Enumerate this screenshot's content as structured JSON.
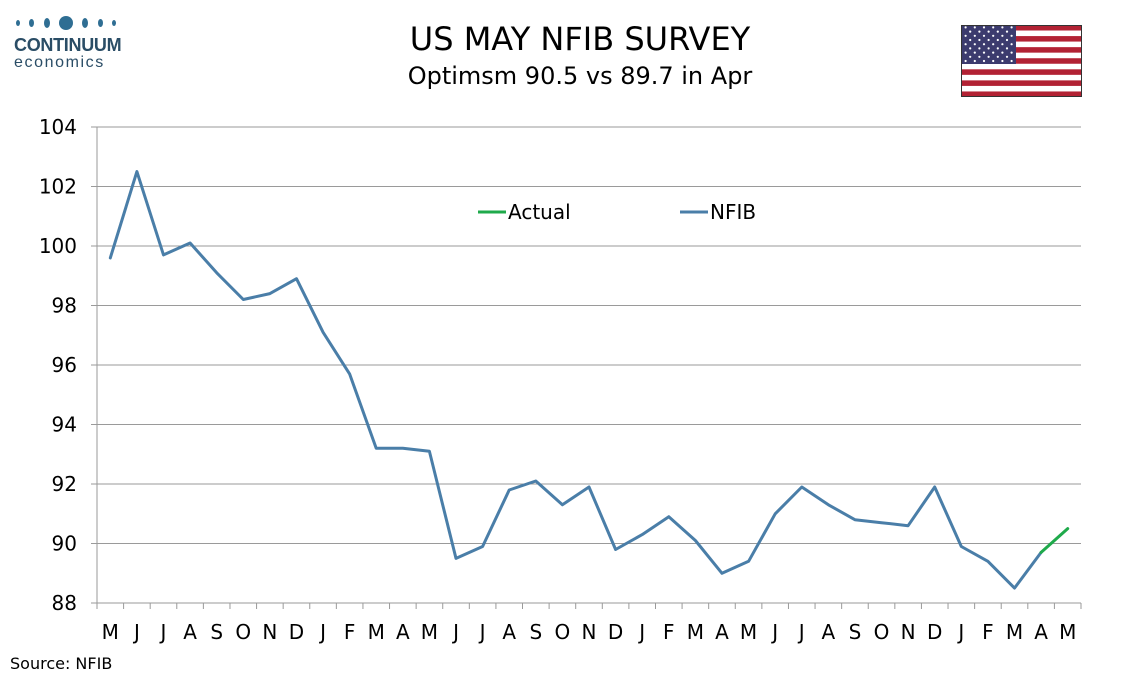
{
  "brand": {
    "name": "CONTINUUM",
    "sub": "economics"
  },
  "header": {
    "title": "US MAY NFIB SURVEY",
    "subtitle": "Optimsm 90.5 vs 89.7 in Apr"
  },
  "flag": {
    "icon": "us-flag-icon",
    "stripe_red": "#b22234",
    "canton_blue": "#3c3b6e"
  },
  "source": "Source: NFIB",
  "chart_data": {
    "type": "line",
    "title": "",
    "xlabel": "",
    "ylabel": "",
    "ylim": [
      88,
      104
    ],
    "yticks": [
      88,
      90,
      92,
      94,
      96,
      98,
      100,
      102,
      104
    ],
    "grid": "horizontal",
    "legend_position": "top-center",
    "categories": [
      "M",
      "J",
      "J",
      "A",
      "S",
      "O",
      "N",
      "D",
      "J",
      "F",
      "M",
      "A",
      "M",
      "J",
      "J",
      "A",
      "S",
      "O",
      "N",
      "D",
      "J",
      "F",
      "M",
      "A",
      "M",
      "J",
      "J",
      "A",
      "S",
      "O",
      "N",
      "D",
      "J",
      "F",
      "M",
      "A",
      "M"
    ],
    "series": [
      {
        "name": "NFIB",
        "color": "#4a7ea8",
        "values": [
          99.6,
          102.5,
          99.7,
          100.1,
          99.1,
          98.2,
          98.4,
          98.9,
          97.1,
          95.7,
          93.2,
          93.2,
          93.1,
          89.5,
          89.9,
          91.8,
          92.1,
          91.3,
          91.9,
          89.8,
          90.3,
          90.9,
          90.1,
          89.0,
          89.4,
          91.0,
          91.9,
          91.3,
          90.8,
          90.7,
          90.6,
          91.9,
          89.9,
          89.4,
          88.5,
          89.7,
          null
        ]
      },
      {
        "name": "Actual",
        "color": "#1faa4b",
        "values": [
          null,
          null,
          null,
          null,
          null,
          null,
          null,
          null,
          null,
          null,
          null,
          null,
          null,
          null,
          null,
          null,
          null,
          null,
          null,
          null,
          null,
          null,
          null,
          null,
          null,
          null,
          null,
          null,
          null,
          null,
          null,
          null,
          null,
          null,
          null,
          89.7,
          90.5
        ]
      }
    ]
  }
}
